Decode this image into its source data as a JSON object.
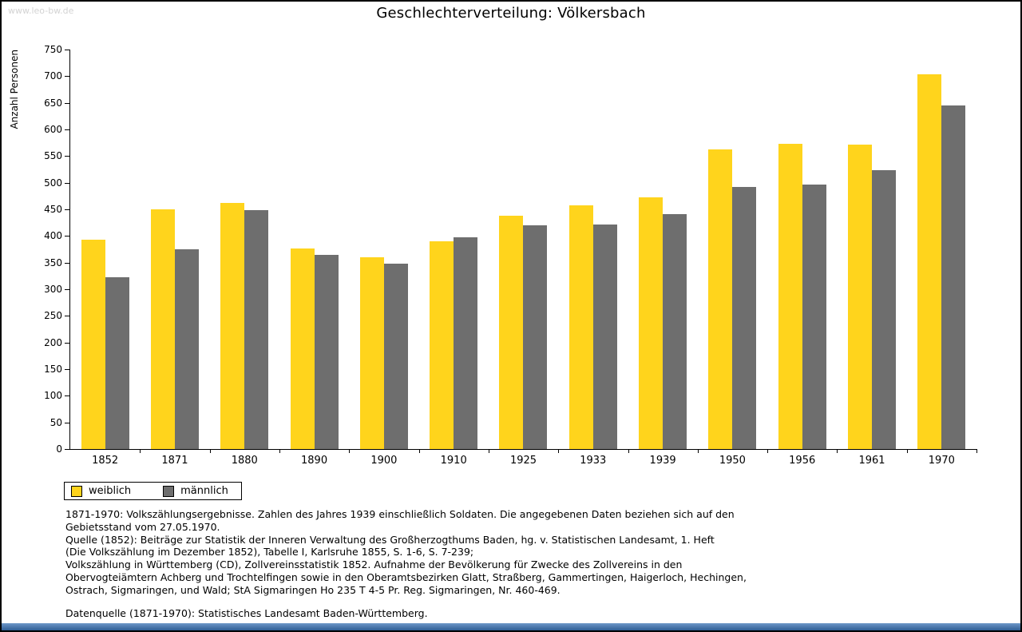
{
  "watermark": "www.leo-bw.de",
  "title": "Geschlechterverteilung: Völkersbach",
  "chart_data": {
    "type": "bar",
    "categories": [
      "1852",
      "1871",
      "1880",
      "1890",
      "1900",
      "1910",
      "1925",
      "1933",
      "1939",
      "1950",
      "1956",
      "1961",
      "1970"
    ],
    "series": [
      {
        "name": "weiblich",
        "color": "#FFD41C",
        "values": [
          393,
          450,
          462,
          377,
          360,
          390,
          438,
          458,
          472,
          562,
          573,
          572,
          703
        ]
      },
      {
        "name": "männlich",
        "color": "#6E6E6E",
        "values": [
          323,
          375,
          448,
          365,
          348,
          398,
          420,
          422,
          441,
          492,
          496,
          523,
          645
        ]
      }
    ],
    "title": "Geschlechterverteilung: Völkersbach",
    "xlabel": "",
    "ylabel": "Anzahl Personen",
    "ylim": [
      0,
      750
    ],
    "ytick_step": 50,
    "grid": false,
    "legend_position": "bottom-left"
  },
  "legend": {
    "items": [
      {
        "label": "weiblich",
        "color": "#FFD41C"
      },
      {
        "label": "männlich",
        "color": "#6E6E6E"
      }
    ]
  },
  "notes": {
    "lines": [
      "1871-1970: Volkszählungsergebnisse. Zahlen des Jahres 1939 einschließlich Soldaten. Die angegebenen Daten beziehen sich auf den",
      "Gebietsstand vom 27.05.1970.",
      "Quelle (1852): Beiträge zur Statistik der Inneren Verwaltung des Großherzogthums Baden, hg. v. Statistischen Landesamt, 1. Heft",
      "(Die Volkszählung im Dezember 1852), Tabelle I, Karlsruhe 1855, S. 1-6, S. 7-239;",
      "Volkszählung in Württemberg (CD), Zollvereinsstatistik 1852. Aufnahme der Bevölkerung für Zwecke des Zollvereins in den",
      "Obervogteiämtern Achberg und Trochtelfingen sowie in den Oberamtsbezirken Glatt, Straßberg, Gammertingen, Haigerloch, Hechingen,",
      "Ostrach, Sigmaringen, und Wald; StA Sigmaringen Ho 235 T 4-5 Pr. Reg. Sigmaringen, Nr. 460-469."
    ],
    "datasource": "Datenquelle (1871-1970): Statistisches Landesamt Baden-Württemberg."
  },
  "colors": {
    "footer_bar_top": "#6d97c8",
    "footer_bar_bottom": "#2f5d94",
    "axis": "#000000",
    "watermark": "#d3d3d3"
  }
}
